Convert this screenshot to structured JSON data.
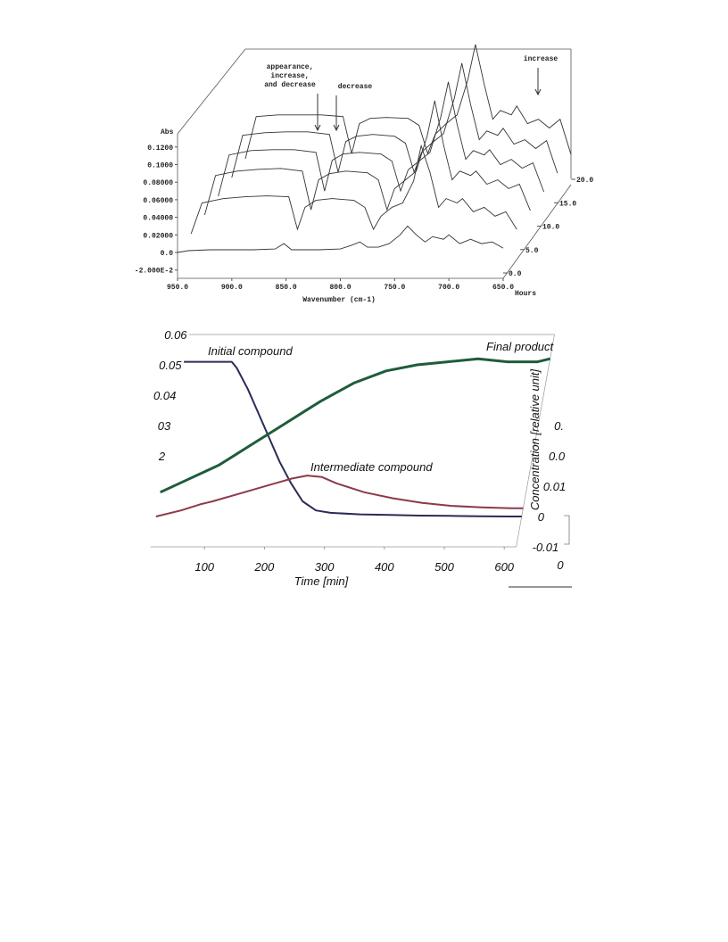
{
  "chart_data": [
    {
      "type": "waterfall",
      "y_label": "Abs",
      "x_label": "Wavenumber (cm-1)",
      "z_label": "Hours",
      "x": [
        950,
        940,
        920,
        900,
        880,
        860,
        852,
        845,
        835,
        820,
        800,
        790,
        782,
        775,
        765,
        755,
        745,
        738,
        730,
        722,
        715,
        705,
        700,
        690,
        680,
        670,
        660,
        650
      ],
      "series": [
        {
          "z": 20,
          "color": "#333333",
          "values": [
            0.0,
            0.048,
            0.05,
            0.05,
            0.05,
            0.048,
            0.006,
            0.04,
            0.046,
            0.047,
            0.046,
            0.038,
            0.006,
            0.028,
            0.04,
            0.05,
            0.09,
            0.13,
            0.085,
            0.045,
            0.055,
            0.05,
            0.06,
            0.04,
            0.045,
            0.035,
            0.045,
            0.005
          ]
        },
        {
          "z": 16,
          "color": "#333333",
          "values": [
            0.0,
            0.048,
            0.051,
            0.052,
            0.052,
            0.049,
            0.006,
            0.041,
            0.047,
            0.049,
            0.047,
            0.039,
            0.006,
            0.029,
            0.04,
            0.05,
            0.09,
            0.13,
            0.083,
            0.043,
            0.053,
            0.048,
            0.056,
            0.038,
            0.043,
            0.033,
            0.042,
            0.005
          ]
        },
        {
          "z": 12,
          "color": "#333333",
          "values": [
            0.0,
            0.047,
            0.052,
            0.053,
            0.053,
            0.05,
            0.006,
            0.041,
            0.048,
            0.05,
            0.048,
            0.04,
            0.006,
            0.03,
            0.04,
            0.05,
            0.09,
            0.13,
            0.082,
            0.042,
            0.052,
            0.047,
            0.053,
            0.036,
            0.042,
            0.032,
            0.038,
            0.005
          ]
        },
        {
          "z": 8,
          "color": "#333333",
          "values": [
            0.0,
            0.045,
            0.05,
            0.052,
            0.053,
            0.05,
            0.006,
            0.04,
            0.047,
            0.05,
            0.048,
            0.04,
            0.006,
            0.03,
            0.04,
            0.05,
            0.09,
            0.13,
            0.08,
            0.04,
            0.05,
            0.045,
            0.05,
            0.035,
            0.04,
            0.03,
            0.035,
            0.005
          ]
        },
        {
          "z": 4,
          "color": "#333333",
          "values": [
            0.0,
            0.035,
            0.04,
            0.042,
            0.043,
            0.042,
            0.005,
            0.03,
            0.038,
            0.04,
            0.038,
            0.03,
            0.005,
            0.02,
            0.03,
            0.035,
            0.06,
            0.1,
            0.07,
            0.03,
            0.04,
            0.035,
            0.04,
            0.025,
            0.03,
            0.02,
            0.025,
            0.005
          ]
        },
        {
          "z": 0,
          "color": "#333333",
          "values": [
            0.0,
            0.002,
            0.003,
            0.003,
            0.003,
            0.004,
            0.01,
            0.003,
            0.003,
            0.003,
            0.004,
            0.008,
            0.012,
            0.006,
            0.006,
            0.01,
            0.02,
            0.03,
            0.02,
            0.012,
            0.018,
            0.015,
            0.02,
            0.01,
            0.015,
            0.01,
            0.012,
            0.005
          ]
        }
      ],
      "xlim": [
        950,
        650
      ],
      "xticks": [
        {
          "value": 950,
          "label": "950.0"
        },
        {
          "value": 900,
          "label": "900.0"
        },
        {
          "value": 850,
          "label": "850.0"
        },
        {
          "value": 800,
          "label": "800.0"
        },
        {
          "value": 750,
          "label": "750.0"
        },
        {
          "value": 700,
          "label": "700.0"
        },
        {
          "value": 650,
          "label": "650.0"
        }
      ],
      "ylim": [
        -0.02,
        0.13
      ],
      "yticks": [
        {
          "value": 0.12,
          "label": "0.1200"
        },
        {
          "value": 0.1,
          "label": "0.1000"
        },
        {
          "value": 0.08,
          "label": "0.08000"
        },
        {
          "value": 0.06,
          "label": "0.06000"
        },
        {
          "value": 0.04,
          "label": "0.04000"
        },
        {
          "value": 0.02,
          "label": "0.02000"
        },
        {
          "value": 0,
          "label": "0.0"
        },
        {
          "value": -0.02,
          "label": "-2.000E-2"
        }
      ],
      "zlim": [
        0,
        20
      ],
      "zticks": [
        {
          "value": 0,
          "label": "0.0"
        },
        {
          "value": 5,
          "label": "5.0"
        },
        {
          "value": 10,
          "label": "10.0"
        },
        {
          "value": 15,
          "label": "15.0"
        },
        {
          "value": 20,
          "label": "20.0"
        }
      ],
      "annotations": [
        {
          "lines": [
            "appearance,",
            "increase,",
            "and decrease"
          ]
        },
        {
          "lines": [
            "decrease"
          ]
        },
        {
          "lines": [
            "increase"
          ]
        }
      ]
    },
    {
      "type": "line",
      "x_label": "Time [min]",
      "y_label": "Concentration [relative unit]",
      "x": [
        10,
        50,
        80,
        90,
        100,
        125,
        150,
        175,
        200,
        225,
        250,
        275,
        300,
        350,
        400,
        450,
        500,
        550,
        600,
        620
      ],
      "series": [
        {
          "name": "Initial compound",
          "color": "#2b2b58",
          "values": [
            0.051,
            0.051,
            0.051,
            0.051,
            0.049,
            0.042,
            0.034,
            0.026,
            0.018,
            0.011,
            0.005,
            0.002,
            0.0012,
            0.0007,
            0.0005,
            0.0003,
            0.0002,
            0.0001,
            0.0,
            0.0
          ]
        },
        {
          "name": "Intermediate compound",
          "color": "#8b3a4a",
          "values": [
            0.0,
            0.002,
            0.004,
            0.0045,
            0.005,
            0.0065,
            0.008,
            0.0095,
            0.011,
            0.0125,
            0.0135,
            0.013,
            0.011,
            0.008,
            0.006,
            0.0045,
            0.0035,
            0.003,
            0.0027,
            0.0027
          ]
        },
        {
          "name": "Final product",
          "color": "#1f5c3a",
          "values": [
            0.008,
            0.012,
            0.015,
            0.016,
            0.017,
            0.0205,
            0.024,
            0.0275,
            0.031,
            0.0345,
            0.038,
            0.041,
            0.044,
            0.048,
            0.05,
            0.051,
            0.052,
            0.051,
            0.051,
            0.052
          ]
        }
      ],
      "xlim": [
        10,
        620
      ],
      "xticks": [
        100,
        200,
        300,
        400,
        500,
        600
      ],
      "ylim": [
        -0.01,
        0.06
      ],
      "yticks": [
        0.06,
        0.05,
        0.04,
        {
          "value": 0.03,
          "label": "03"
        },
        {
          "value": 0.02,
          "label": "2"
        }
      ],
      "y2lim": [
        -0.01,
        0.06
      ],
      "y2ticks": [
        {
          "value": 0.03,
          "label": "0."
        },
        {
          "value": 0.02,
          "label": "0.0"
        },
        0.01,
        0,
        -0.01
      ],
      "depth_tick_label": "0"
    }
  ]
}
